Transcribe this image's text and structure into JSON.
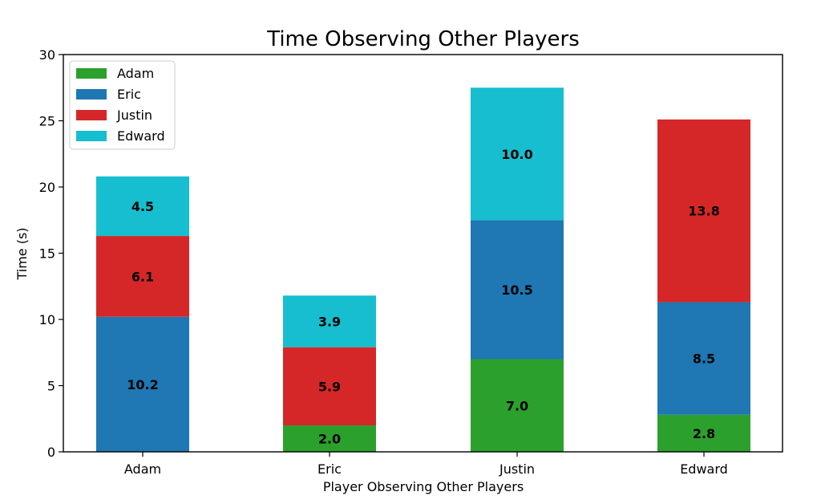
{
  "chart_data": {
    "type": "bar",
    "stacked": true,
    "title": "Time Observing Other Players",
    "xlabel": "Player Observing Other Players",
    "ylabel": "Time (s)",
    "categories": [
      "Adam",
      "Eric",
      "Justin",
      "Edward"
    ],
    "ylim": [
      0,
      30
    ],
    "yticks": [
      0,
      5,
      10,
      15,
      20,
      25,
      30
    ],
    "grid": false,
    "legend_position": "top-left",
    "series": [
      {
        "name": "Adam",
        "color": "#2ca02c",
        "values": [
          0,
          2.0,
          7.0,
          2.8
        ]
      },
      {
        "name": "Eric",
        "color": "#1f77b4",
        "values": [
          10.2,
          0,
          10.5,
          8.5
        ]
      },
      {
        "name": "Justin",
        "color": "#d62728",
        "values": [
          6.1,
          5.9,
          0,
          13.8
        ]
      },
      {
        "name": "Edward",
        "color": "#17becf",
        "values": [
          4.5,
          3.9,
          10.0,
          0
        ]
      }
    ]
  }
}
